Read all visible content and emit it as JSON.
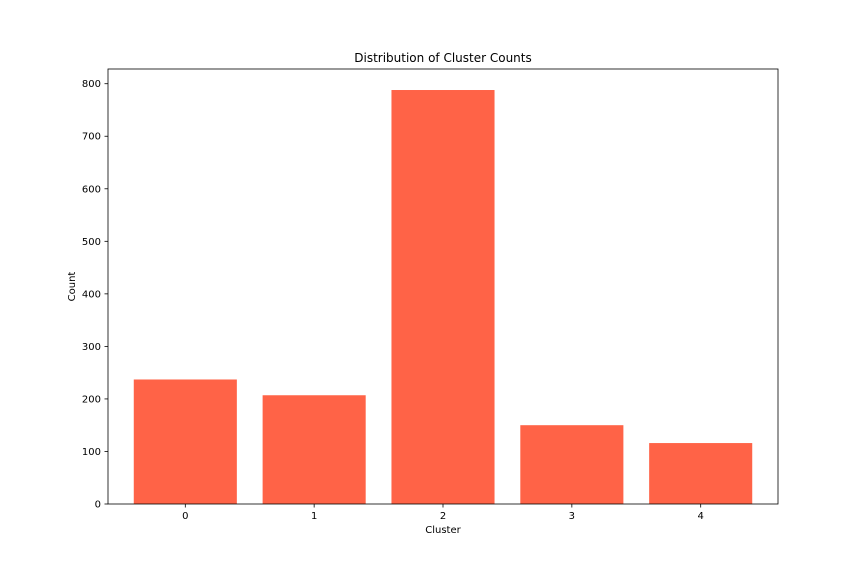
{
  "chart_data": {
    "type": "bar",
    "title": "Distribution of Cluster Counts",
    "xlabel": "Cluster",
    "ylabel": "Count",
    "categories": [
      "0",
      "1",
      "2",
      "3",
      "4"
    ],
    "values": [
      237,
      207,
      788,
      150,
      116
    ],
    "ylim": [
      0,
      828
    ],
    "yticks": [
      0,
      100,
      200,
      300,
      400,
      500,
      600,
      700,
      800
    ],
    "bar_color": "#ff6347",
    "grid": false,
    "legend": "none"
  }
}
